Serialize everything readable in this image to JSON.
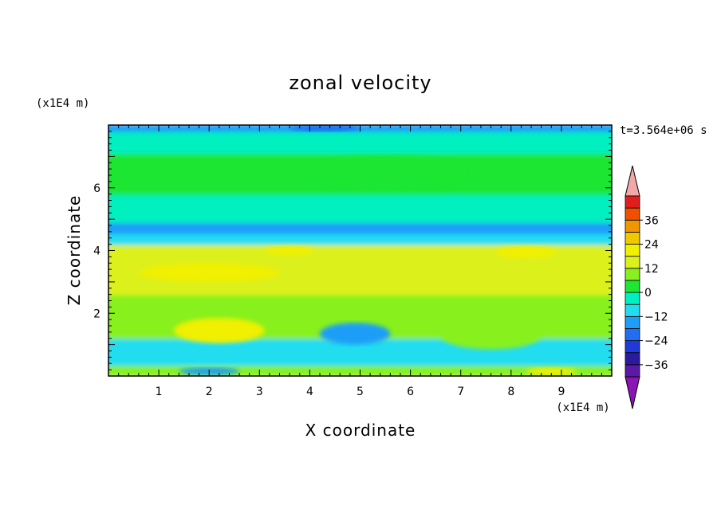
{
  "chart_data": {
    "type": "heatmap",
    "title": "zonal velocity",
    "xlabel": "X coordinate",
    "ylabel": "Z coordinate",
    "x_units": "(x1E4 m)",
    "y_units": "(x1E4 m)",
    "time_label": "t=3.564e+06 s",
    "xlim": [
      0,
      10
    ],
    "ylim": [
      0,
      8
    ],
    "xticks": [
      1,
      2,
      3,
      4,
      5,
      6,
      7,
      8,
      9
    ],
    "yticks": [
      2,
      4,
      6
    ],
    "colorbar": {
      "levels": [
        -42,
        -36,
        -30,
        -24,
        -18,
        -12,
        -6,
        0,
        6,
        12,
        18,
        24,
        30,
        36,
        42
      ],
      "labels": [
        -36,
        -24,
        -12,
        0,
        12,
        24,
        36
      ],
      "colors": [
        "#5a1aa6",
        "#2b1a9e",
        "#1f3ad8",
        "#1f6ff0",
        "#1e9ef8",
        "#22dcf0",
        "#00f0c0",
        "#1ee632",
        "#88f01e",
        "#dcf01e",
        "#f0f000",
        "#f0c800",
        "#f09600",
        "#f05000",
        "#e01e1e"
      ],
      "under_color": "#8a14b4",
      "over_color": "#f0a8a8"
    },
    "bands": [
      {
        "z": [
          0.0,
          0.35
        ],
        "value": 6
      },
      {
        "z": [
          0.35,
          1.2
        ],
        "value": -12
      },
      {
        "z": [
          1.2,
          1.9
        ],
        "value": 6
      },
      {
        "z": [
          1.9,
          2.6
        ],
        "value": 6
      },
      {
        "z": [
          2.6,
          4.2
        ],
        "value": 12
      },
      {
        "z": [
          4.2,
          4.55
        ],
        "value": -12
      },
      {
        "z": [
          4.55,
          4.9
        ],
        "value": -18
      },
      {
        "z": [
          4.9,
          5.8
        ],
        "value": -6
      },
      {
        "z": [
          5.8,
          7.1
        ],
        "value": 0
      },
      {
        "z": [
          7.1,
          7.8
        ],
        "value": -6
      },
      {
        "z": [
          7.8,
          8.0
        ],
        "value": -18
      }
    ],
    "features": [
      {
        "x": 2.2,
        "z": 1.45,
        "rx": 0.9,
        "rz": 0.4,
        "value": 18
      },
      {
        "x": 4.9,
        "z": 1.35,
        "rx": 0.7,
        "rz": 0.35,
        "value": -18
      },
      {
        "x": 7.6,
        "z": 1.3,
        "rx": 1.0,
        "rz": 0.45,
        "value": 6
      },
      {
        "x": 8.3,
        "z": 3.95,
        "rx": 0.6,
        "rz": 0.2,
        "value": 18
      },
      {
        "x": 3.6,
        "z": 4.0,
        "rx": 0.5,
        "rz": 0.15,
        "value": 18
      },
      {
        "x": 2.0,
        "z": 3.3,
        "rx": 1.4,
        "rz": 0.3,
        "value": 18
      },
      {
        "x": 5.5,
        "z": 6.5,
        "rx": 1.6,
        "rz": 0.5,
        "value": 0
      },
      {
        "x": 2.0,
        "z": 0.15,
        "rx": 0.6,
        "rz": 0.12,
        "value": -18
      },
      {
        "x": 8.8,
        "z": 0.15,
        "rx": 0.5,
        "rz": 0.12,
        "value": 18
      },
      {
        "x": 4.3,
        "z": 7.9,
        "rx": 0.7,
        "rz": 0.1,
        "value": -24
      }
    ]
  }
}
